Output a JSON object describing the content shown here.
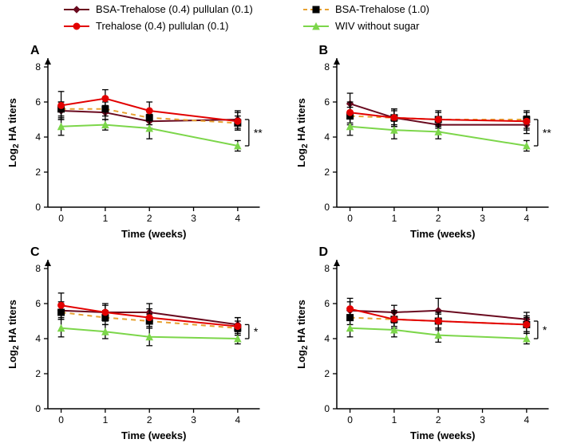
{
  "legend": {
    "items": [
      {
        "id": "btp",
        "label": "BSA-Trehalose (0.4) pullulan (0.1)",
        "color": "#6a0a1f",
        "marker": "diamond"
      },
      {
        "id": "bt",
        "label": "BSA-Trehalose (1.0)",
        "color": "#e8a232",
        "marker": "square",
        "dashed": true
      },
      {
        "id": "tp",
        "label": "Trehalose (0.4) pullulan (0.1)",
        "color": "#e20000",
        "marker": "circle"
      },
      {
        "id": "wiv",
        "label": "WIV without sugar",
        "color": "#7cd64a",
        "marker": "triangle"
      }
    ]
  },
  "axes": {
    "x": {
      "label": "Time (weeks)",
      "ticks": [
        0,
        1,
        2,
        3,
        4
      ],
      "lim": [
        -0.3,
        4.5
      ]
    },
    "y": {
      "label": "Log₂ HA titers",
      "ticks": [
        0,
        2,
        4,
        6,
        8
      ],
      "lim": [
        0,
        8.5
      ]
    }
  },
  "panels": [
    {
      "id": "A",
      "label": "A",
      "sig": "**",
      "sig_bracket": {
        "y_top": 5.0,
        "y_bot": 3.5
      }
    },
    {
      "id": "B",
      "label": "B",
      "sig": "**",
      "sig_bracket": {
        "y_top": 5.0,
        "y_bot": 3.5
      }
    },
    {
      "id": "C",
      "label": "C",
      "sig": "*",
      "sig_bracket": {
        "y_top": 4.8,
        "y_bot": 4.0
      }
    },
    {
      "id": "D",
      "label": "D",
      "sig": "*",
      "sig_bracket": {
        "y_top": 5.0,
        "y_bot": 4.0
      }
    }
  ],
  "series_style": {
    "btp": {
      "color": "#6a0a1f",
      "marker": "diamond",
      "width": 2,
      "dashed": false
    },
    "bt": {
      "color": "#e8a232",
      "marker": "square",
      "width": 2,
      "dashed": true
    },
    "tp": {
      "color": "#e20000",
      "marker": "circle",
      "width": 2,
      "dashed": false
    },
    "wiv": {
      "color": "#7cd64a",
      "marker": "triangle",
      "width": 2,
      "dashed": false
    }
  },
  "data": {
    "A": {
      "btp": [
        {
          "x": 0,
          "y": 5.5,
          "err": 0.5
        },
        {
          "x": 1,
          "y": 5.4,
          "err": 0.4
        },
        {
          "x": 2,
          "y": 4.9,
          "err": 0.4
        },
        {
          "x": 4,
          "y": 5.0,
          "err": 0.5
        }
      ],
      "bt": [
        {
          "x": 0,
          "y": 5.6,
          "err": 0.4
        },
        {
          "x": 1,
          "y": 5.6,
          "err": 0.4
        },
        {
          "x": 2,
          "y": 5.1,
          "err": 0.4
        },
        {
          "x": 4,
          "y": 4.8,
          "err": 0.4
        }
      ],
      "tp": [
        {
          "x": 0,
          "y": 5.8,
          "err": 0.8
        },
        {
          "x": 1,
          "y": 6.2,
          "err": 0.5
        },
        {
          "x": 2,
          "y": 5.5,
          "err": 0.5
        },
        {
          "x": 4,
          "y": 4.9,
          "err": 0.5
        }
      ],
      "wiv": [
        {
          "x": 0,
          "y": 4.6,
          "err": 0.5
        },
        {
          "x": 1,
          "y": 4.7,
          "err": 0.3
        },
        {
          "x": 2,
          "y": 4.5,
          "err": 0.6
        },
        {
          "x": 4,
          "y": 3.5,
          "err": 0.3
        }
      ]
    },
    "B": {
      "btp": [
        {
          "x": 0,
          "y": 5.9,
          "err": 0.6
        },
        {
          "x": 1,
          "y": 5.1,
          "err": 0.5
        },
        {
          "x": 2,
          "y": 4.7,
          "err": 0.4
        },
        {
          "x": 4,
          "y": 4.7,
          "err": 0.5
        }
      ],
      "bt": [
        {
          "x": 0,
          "y": 5.2,
          "err": 0.5
        },
        {
          "x": 1,
          "y": 5.1,
          "err": 0.4
        },
        {
          "x": 2,
          "y": 5.0,
          "err": 0.4
        },
        {
          "x": 4,
          "y": 5.0,
          "err": 0.5
        }
      ],
      "tp": [
        {
          "x": 0,
          "y": 5.4,
          "err": 0.6
        },
        {
          "x": 1,
          "y": 5.1,
          "err": 0.5
        },
        {
          "x": 2,
          "y": 5.0,
          "err": 0.5
        },
        {
          "x": 4,
          "y": 4.9,
          "err": 0.5
        }
      ],
      "wiv": [
        {
          "x": 0,
          "y": 4.6,
          "err": 0.5
        },
        {
          "x": 1,
          "y": 4.4,
          "err": 0.5
        },
        {
          "x": 2,
          "y": 4.3,
          "err": 0.4
        },
        {
          "x": 4,
          "y": 3.5,
          "err": 0.3
        }
      ]
    },
    "C": {
      "btp": [
        {
          "x": 0,
          "y": 5.6,
          "err": 0.5
        },
        {
          "x": 1,
          "y": 5.5,
          "err": 0.4
        },
        {
          "x": 2,
          "y": 5.5,
          "err": 0.5
        },
        {
          "x": 4,
          "y": 4.8,
          "err": 0.4
        }
      ],
      "bt": [
        {
          "x": 0,
          "y": 5.5,
          "err": 0.4
        },
        {
          "x": 1,
          "y": 5.2,
          "err": 0.4
        },
        {
          "x": 2,
          "y": 5.0,
          "err": 0.4
        },
        {
          "x": 4,
          "y": 4.6,
          "err": 0.4
        }
      ],
      "tp": [
        {
          "x": 0,
          "y": 5.9,
          "err": 0.7
        },
        {
          "x": 1,
          "y": 5.5,
          "err": 0.5
        },
        {
          "x": 2,
          "y": 5.2,
          "err": 0.5
        },
        {
          "x": 4,
          "y": 4.7,
          "err": 0.5
        }
      ],
      "wiv": [
        {
          "x": 0,
          "y": 4.6,
          "err": 0.5
        },
        {
          "x": 1,
          "y": 4.4,
          "err": 0.4
        },
        {
          "x": 2,
          "y": 4.1,
          "err": 0.5
        },
        {
          "x": 4,
          "y": 4.0,
          "err": 0.3
        }
      ]
    },
    "D": {
      "btp": [
        {
          "x": 0,
          "y": 5.6,
          "err": 0.5
        },
        {
          "x": 1,
          "y": 5.5,
          "err": 0.4
        },
        {
          "x": 2,
          "y": 5.6,
          "err": 0.7
        },
        {
          "x": 4,
          "y": 5.1,
          "err": 0.4
        }
      ],
      "bt": [
        {
          "x": 0,
          "y": 5.2,
          "err": 0.4
        },
        {
          "x": 1,
          "y": 5.1,
          "err": 0.4
        },
        {
          "x": 2,
          "y": 5.0,
          "err": 0.4
        },
        {
          "x": 4,
          "y": 4.8,
          "err": 0.4
        }
      ],
      "tp": [
        {
          "x": 0,
          "y": 5.7,
          "err": 0.6
        },
        {
          "x": 1,
          "y": 5.1,
          "err": 0.5
        },
        {
          "x": 2,
          "y": 5.0,
          "err": 0.5
        },
        {
          "x": 4,
          "y": 4.8,
          "err": 0.5
        }
      ],
      "wiv": [
        {
          "x": 0,
          "y": 4.6,
          "err": 0.5
        },
        {
          "x": 1,
          "y": 4.5,
          "err": 0.4
        },
        {
          "x": 2,
          "y": 4.2,
          "err": 0.4
        },
        {
          "x": 4,
          "y": 4.0,
          "err": 0.3
        }
      ]
    }
  },
  "style": {
    "axis_color": "#000000",
    "background": "#ffffff",
    "tick_fontsize": 12,
    "label_fontsize": 13,
    "panel_label_fontsize": 16,
    "marker_size": 4,
    "cap_halfwidth": 0.07,
    "errorbar_width": 1.3
  }
}
